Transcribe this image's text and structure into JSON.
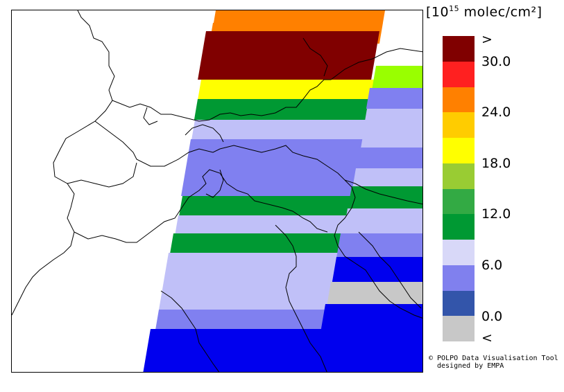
{
  "legend": {
    "unit_base": "[10",
    "unit_exp": "15",
    "unit_rest": " molec/cm²]",
    "colors": [
      "#800000",
      "#ff2020",
      "#ff8000",
      "#ffcc00",
      "#ffff00",
      "#99cc33",
      "#33aa44",
      "#009933",
      "#d8d8f8",
      "#8080ee",
      "#3355aa",
      "#c8c8c8"
    ],
    "tick_labels": [
      ">",
      "30.0",
      "24.0",
      "18.0",
      "12.0",
      "6.0",
      "0.0",
      "<"
    ]
  },
  "credit": {
    "line1": "© POLPO Data Visualisation Tool",
    "line2": "designed by EMPA"
  },
  "swath_colors": {
    "dark_red": "#800000",
    "orange": "#ff8000",
    "yellow": "#ffff00",
    "green": "#009933",
    "lime": "#99ff00",
    "light_lavender": "#c0c0f8",
    "periwinkle": "#8080f0",
    "blue": "#0000ee",
    "grey": "#c8c8c8"
  }
}
